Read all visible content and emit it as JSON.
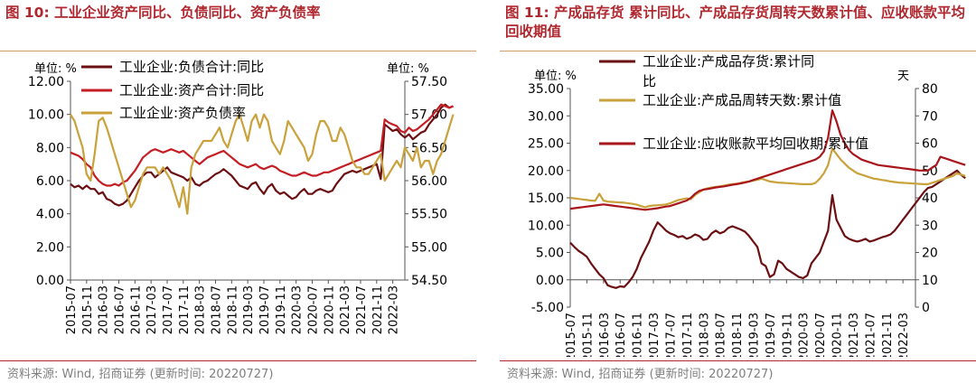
{
  "figures": [
    {
      "title": "图 10: 工业企业资产同比、负债同比、资产负债率",
      "source": "资料来源: Wind, 招商证券 (更新时间: 20220727)",
      "colors": {
        "dark": "#6b0f12",
        "red": "#c41e24",
        "gold": "#c9a23c",
        "accent": "#b0282f"
      }
    },
    {
      "title": "图 11: 产成品存货 累计同比、产成品存货周转天数累计值、应收账款平均回收期值",
      "source": "资料来源: Wind, 招商证券 (更新时间: 20220727)",
      "colors": {
        "dark": "#6b0f12",
        "red": "#a8161c",
        "gold": "#c9a23c",
        "accent": "#b0282f"
      }
    }
  ],
  "chart_data": [
    {
      "type": "line",
      "grid": false,
      "y_unit_left": "单位: %",
      "y_unit_right": "单位: %",
      "ylim_left": [
        0,
        12
      ],
      "yticks_left": [
        "0.00",
        "2.00",
        "4.00",
        "6.00",
        "8.00",
        "10.00",
        "12.00"
      ],
      "ylim_right": [
        54.5,
        57.5
      ],
      "yticks_right": [
        "54.50",
        "55.00",
        "55.50",
        "56.00",
        "56.50",
        "57.00",
        "57.50"
      ],
      "x_start": "2015-07",
      "x_end": "2022-06",
      "xtick_labels": [
        "2015-07",
        "2015-11",
        "2016-03",
        "2016-07",
        "2016-11",
        "2017-03",
        "2017-07",
        "2017-11",
        "2018-03",
        "2018-07",
        "2018-11",
        "2019-03",
        "2019-07",
        "2019-11",
        "2020-03",
        "2020-07",
        "2020-11",
        "2021-03",
        "2021-07",
        "2021-11",
        "2022-03"
      ],
      "legend_position": "top",
      "series": [
        {
          "name": "工业企业:负债合计:同比",
          "axis": "left",
          "color": "#6b0f12",
          "values": [
            5.8,
            5.6,
            5.7,
            5.5,
            5.7,
            5.5,
            5.5,
            5.2,
            5.3,
            4.9,
            4.8,
            4.6,
            4.5,
            4.6,
            4.8,
            5.2,
            5.6,
            6.0,
            6.3,
            6.5,
            6.5,
            6.2,
            6.4,
            6.6,
            6.8,
            6.5,
            6.4,
            6.3,
            6.2,
            6.0,
            6.2,
            5.8,
            5.7,
            5.9,
            6.0,
            6.2,
            6.4,
            6.5,
            6.7,
            6.5,
            6.3,
            6.0,
            5.7,
            5.6,
            5.5,
            5.8,
            5.9,
            5.5,
            5.2,
            5.6,
            5.8,
            5.4,
            5.2,
            5.3,
            5.1,
            4.9,
            5.0,
            5.3,
            5.5,
            5.2,
            5.2,
            5.4,
            5.5,
            5.4,
            5.3,
            5.4,
            5.8,
            6.1,
            6.4,
            6.5,
            6.6,
            6.5,
            6.6,
            6.7,
            6.8,
            6.9,
            7.0,
            6.1,
            9.4,
            9.2,
            9.0,
            9.1,
            8.8,
            8.6,
            8.8,
            8.5,
            8.7,
            8.9,
            9.0,
            9.4,
            9.7,
            10.0,
            10.4,
            10.6,
            10.4,
            10.5
          ]
        },
        {
          "name": "工业企业:资产合计:同比",
          "axis": "left",
          "color": "#c41e24",
          "values": [
            7.7,
            7.6,
            7.5,
            7.3,
            7.0,
            6.8,
            6.3,
            6.0,
            5.8,
            5.7,
            5.7,
            5.8,
            5.7,
            5.9,
            6.0,
            6.3,
            6.6,
            7.0,
            7.4,
            7.6,
            7.8,
            7.9,
            7.8,
            7.7,
            7.8,
            7.9,
            7.8,
            7.7,
            7.8,
            7.6,
            7.4,
            7.2,
            7.0,
            7.2,
            7.4,
            7.5,
            7.6,
            7.7,
            7.8,
            7.6,
            7.4,
            7.2,
            7.0,
            6.9,
            6.8,
            6.9,
            7.0,
            6.8,
            6.7,
            6.8,
            6.9,
            6.8,
            6.6,
            6.5,
            6.4,
            6.3,
            6.3,
            6.4,
            6.5,
            6.4,
            6.3,
            6.3,
            6.4,
            6.5,
            6.5,
            6.6,
            6.7,
            6.8,
            6.9,
            7.0,
            7.1,
            7.2,
            7.3,
            7.4,
            7.5,
            7.6,
            7.7,
            7.8,
            9.7,
            9.5,
            9.4,
            9.3,
            9.0,
            8.9,
            9.2,
            9.0,
            9.1,
            9.3,
            9.5,
            9.7,
            10.0,
            10.3,
            10.6,
            10.5,
            10.4,
            10.5
          ]
        },
        {
          "name": "工业企业:资产负债率",
          "axis": "right",
          "color": "#c9a23c",
          "values": [
            57.0,
            56.9,
            56.7,
            56.5,
            56.1,
            56.0,
            56.4,
            56.9,
            56.95,
            56.8,
            56.6,
            56.4,
            56.2,
            56.0,
            55.8,
            55.6,
            55.7,
            55.9,
            56.1,
            56.2,
            56.2,
            56.2,
            56.1,
            56.2,
            56.1,
            56.0,
            55.8,
            55.6,
            55.9,
            55.5,
            56.2,
            56.4,
            56.5,
            56.6,
            56.6,
            56.6,
            56.7,
            56.8,
            56.6,
            56.5,
            56.7,
            56.9,
            57.0,
            56.8,
            56.6,
            56.9,
            57.0,
            56.8,
            57.0,
            56.9,
            56.6,
            56.5,
            56.4,
            56.6,
            56.9,
            56.8,
            56.7,
            56.6,
            56.5,
            56.3,
            56.4,
            56.7,
            56.9,
            56.9,
            56.8,
            56.6,
            56.6,
            56.8,
            56.7,
            56.5,
            56.3,
            56.2,
            56.2,
            56.1,
            56.1,
            56.2,
            56.3,
            56.4,
            56.0,
            56.1,
            56.2,
            56.3,
            56.2,
            56.5,
            56.4,
            56.3,
            56.5,
            56.2,
            56.3,
            56.3,
            56.1,
            56.3,
            56.4,
            56.6,
            56.8,
            57.0
          ]
        }
      ]
    },
    {
      "type": "line",
      "grid": false,
      "y_unit_left": "单位: %",
      "y_unit_right": "天",
      "ylim_left": [
        -5,
        35
      ],
      "yticks_left": [
        "-5.00",
        "0.00",
        "5.00",
        "10.00",
        "15.00",
        "20.00",
        "25.00",
        "30.00",
        "35.00"
      ],
      "ylim_right": [
        0,
        80
      ],
      "yticks_right": [
        "0",
        "10",
        "20",
        "30",
        "40",
        "50",
        "60",
        "70",
        "80"
      ],
      "x_start": "2015-07",
      "x_end": "2022-06",
      "xtick_labels": [
        "2015-07",
        "2015-11",
        "2016-03",
        "2016-07",
        "2016-11",
        "2017-03",
        "2017-07",
        "2017-11",
        "2018-03",
        "2018-07",
        "2018-11",
        "2019-03",
        "2019-07",
        "2019-11",
        "2020-03",
        "2020-07",
        "2020-11",
        "2021-03",
        "2021-07",
        "2021-11",
        "2022-03"
      ],
      "legend_position": "top",
      "series": [
        {
          "name": "工业企业:产成品存货:累计同比",
          "axis": "left",
          "color": "#6b0f12",
          "values": [
            6.8,
            6.0,
            5.3,
            4.8,
            4.2,
            3.0,
            2.0,
            1.0,
            0.3,
            -1.0,
            -1.3,
            -1.5,
            -1.2,
            -1.3,
            -0.5,
            0.5,
            2.0,
            4.0,
            5.5,
            7.0,
            9.0,
            10.5,
            9.8,
            9.0,
            8.5,
            8.2,
            7.8,
            8.0,
            7.5,
            7.8,
            8.3,
            8.0,
            7.3,
            7.5,
            8.5,
            9.0,
            8.5,
            8.8,
            9.5,
            9.8,
            9.5,
            9.2,
            8.8,
            8.0,
            7.0,
            6.0,
            3.0,
            2.5,
            0.5,
            1.0,
            3.5,
            3.0,
            2.0,
            1.5,
            1.0,
            0.5,
            0.3,
            0.8,
            3.0,
            4.0,
            5.0,
            7.0,
            9.0,
            15.5,
            11.0,
            9.5,
            8.0,
            7.5,
            7.2,
            7.0,
            7.2,
            7.5,
            7.0,
            7.2,
            7.5,
            7.8,
            8.0,
            8.3,
            9.0,
            10.0,
            11.0,
            12.0,
            13.0,
            14.0,
            15.0,
            16.0,
            16.8,
            17.0,
            17.5,
            18.0,
            18.5,
            19.0,
            19.5,
            20.0,
            19.2,
            18.6
          ]
        },
        {
          "name": "工业企业:产成品周转天数:累计值",
          "axis": "right",
          "color": "#c9a23c",
          "values": [
            40.0,
            39.8,
            39.6,
            39.4,
            39.2,
            39.0,
            38.9,
            41.5,
            39.0,
            38.6,
            38.5,
            38.4,
            38.3,
            38.2,
            38.0,
            37.8,
            37.5,
            37.0,
            36.5,
            37.0,
            37.2,
            37.3,
            37.4,
            37.6,
            38.0,
            38.6,
            39.2,
            39.5,
            39.8,
            39.5,
            41.0,
            42.0,
            43.0,
            43.5,
            43.8,
            44.0,
            44.2,
            44.5,
            44.8,
            45.0,
            45.2,
            45.5,
            45.8,
            46.0,
            46.3,
            46.6,
            47.0,
            46.5,
            46.0,
            45.8,
            45.6,
            45.5,
            45.4,
            45.3,
            45.2,
            45.1,
            45.0,
            45.0,
            45.0,
            45.5,
            47.0,
            49.0,
            52.0,
            58.0,
            56.0,
            54.0,
            52.5,
            51.0,
            50.0,
            49.0,
            48.5,
            48.0,
            47.5,
            47.0,
            46.8,
            46.5,
            46.3,
            46.0,
            45.8,
            45.6,
            45.5,
            45.4,
            45.3,
            45.2,
            45.1,
            45.0,
            45.0,
            45.5,
            46.0,
            46.5,
            47.0,
            47.5,
            48.0,
            49.0,
            48.5,
            48.0
          ]
        },
        {
          "name": "工业企业:应收账款平均回收期:累计值",
          "axis": "right",
          "color": "#a8161c",
          "values": [
            36.0,
            36.2,
            36.4,
            36.6,
            36.8,
            37.0,
            37.2,
            37.4,
            37.6,
            37.4,
            37.2,
            37.0,
            36.8,
            36.6,
            36.4,
            36.2,
            36.0,
            35.8,
            35.6,
            35.8,
            36.0,
            36.2,
            36.5,
            36.8,
            37.0,
            37.5,
            38.0,
            38.5,
            39.0,
            40.0,
            41.5,
            42.5,
            43.0,
            43.2,
            43.5,
            43.8,
            44.0,
            44.2,
            44.5,
            44.8,
            45.0,
            45.3,
            45.6,
            46.0,
            46.5,
            47.0,
            47.5,
            48.0,
            48.5,
            49.0,
            49.5,
            50.0,
            50.5,
            51.0,
            51.5,
            52.0,
            52.5,
            53.0,
            53.5,
            54.0,
            55.0,
            57.0,
            62.0,
            72.0,
            68.0,
            63.0,
            60.0,
            57.5,
            56.0,
            55.0,
            54.0,
            53.5,
            53.0,
            52.5,
            52.0,
            51.8,
            51.6,
            51.4,
            51.2,
            51.0,
            50.8,
            50.6,
            50.4,
            50.2,
            50.0,
            50.0,
            50.0,
            51.0,
            52.0,
            55.0,
            54.5,
            54.0,
            53.5,
            53.0,
            52.5,
            52.0
          ]
        }
      ]
    }
  ]
}
